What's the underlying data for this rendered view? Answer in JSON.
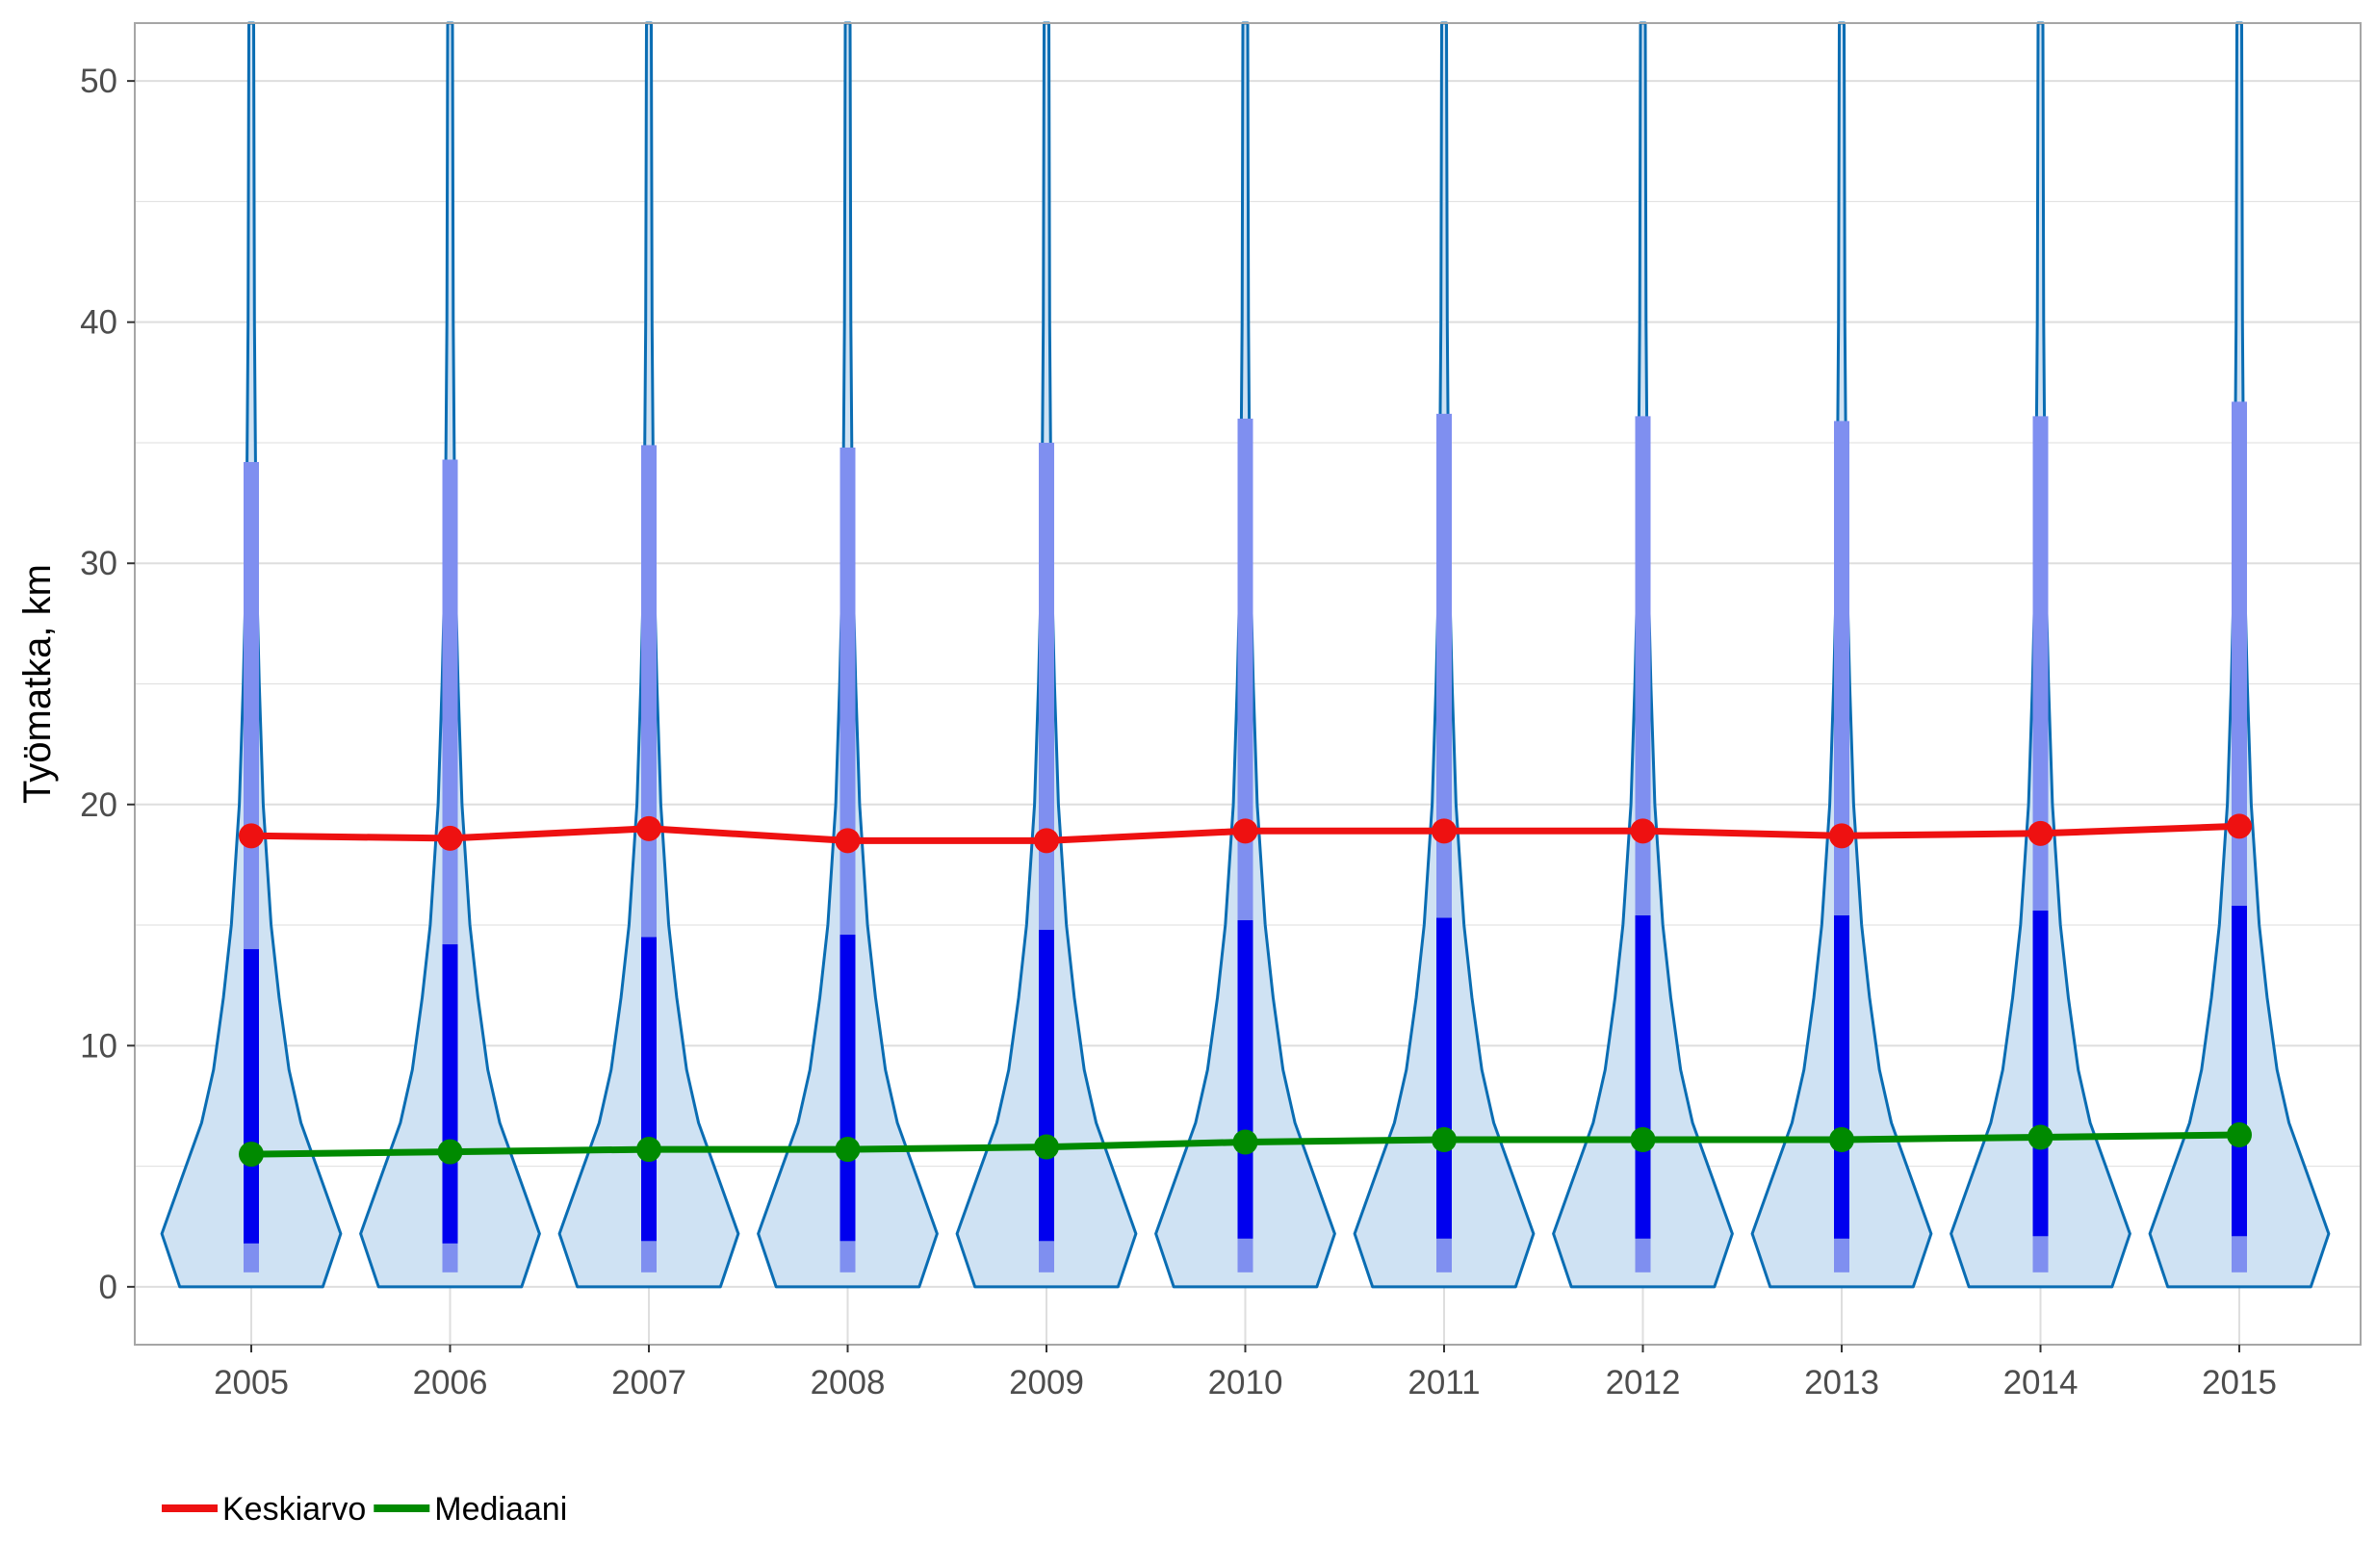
{
  "colors": {
    "violin_fill": "#cfe2f3",
    "violin_stroke": "#0a6db3",
    "inner_band": "#7f8ff0",
    "inner_core": "#0000ee",
    "mean_line": "#ee1111",
    "median_line": "#008a00",
    "grid": "#dedede",
    "panel_border": "#a6a6a6"
  },
  "chart_data": {
    "type": "violin",
    "title": "",
    "xlabel": "",
    "ylabel": "Työmatka, km",
    "categories": [
      "2005",
      "2006",
      "2007",
      "2008",
      "2009",
      "2010",
      "2011",
      "2012",
      "2013",
      "2014",
      "2015"
    ],
    "ylim": [
      -2.4,
      52.4
    ],
    "yticks": [
      0,
      10,
      20,
      30,
      40,
      50
    ],
    "grid": true,
    "legend_position": "bottom-left",
    "series": [
      {
        "name": "Keskiarvo",
        "values": [
          18.7,
          18.6,
          19.0,
          18.5,
          18.5,
          18.9,
          18.9,
          18.9,
          18.7,
          18.8,
          19.1
        ]
      },
      {
        "name": "Mediaani",
        "values": [
          5.5,
          5.6,
          5.7,
          5.7,
          5.8,
          6.0,
          6.1,
          6.1,
          6.1,
          6.2,
          6.3
        ]
      }
    ],
    "percentiles": {
      "p5": [
        1.9,
        1.9,
        1.9,
        2.0,
        2.0,
        2.0,
        2.1,
        2.1,
        2.1,
        2.1,
        2.2
      ],
      "p25": [
        1.8,
        1.8,
        1.9,
        1.9,
        1.9,
        2.0,
        2.0,
        2.0,
        2.0,
        2.1,
        2.1
      ],
      "p75": [
        14.0,
        14.2,
        14.5,
        14.6,
        14.8,
        15.2,
        15.3,
        15.4,
        15.4,
        15.6,
        15.8
      ],
      "p95": [
        34.2,
        34.3,
        34.9,
        34.8,
        35.0,
        36.0,
        36.2,
        36.1,
        35.9,
        36.1,
        36.7
      ],
      "p1": [
        0.6,
        0.6,
        0.6,
        0.6,
        0.6,
        0.6,
        0.6,
        0.6,
        0.6,
        0.6,
        0.6
      ]
    },
    "violin_profile": {
      "y": [
        0,
        2.2,
        4.5,
        6.8,
        9,
        12,
        15,
        20,
        25,
        30,
        40,
        52.4
      ],
      "half_width": [
        0.36,
        0.45,
        0.35,
        0.25,
        0.19,
        0.14,
        0.1,
        0.06,
        0.04,
        0.025,
        0.016,
        0.012
      ]
    }
  }
}
